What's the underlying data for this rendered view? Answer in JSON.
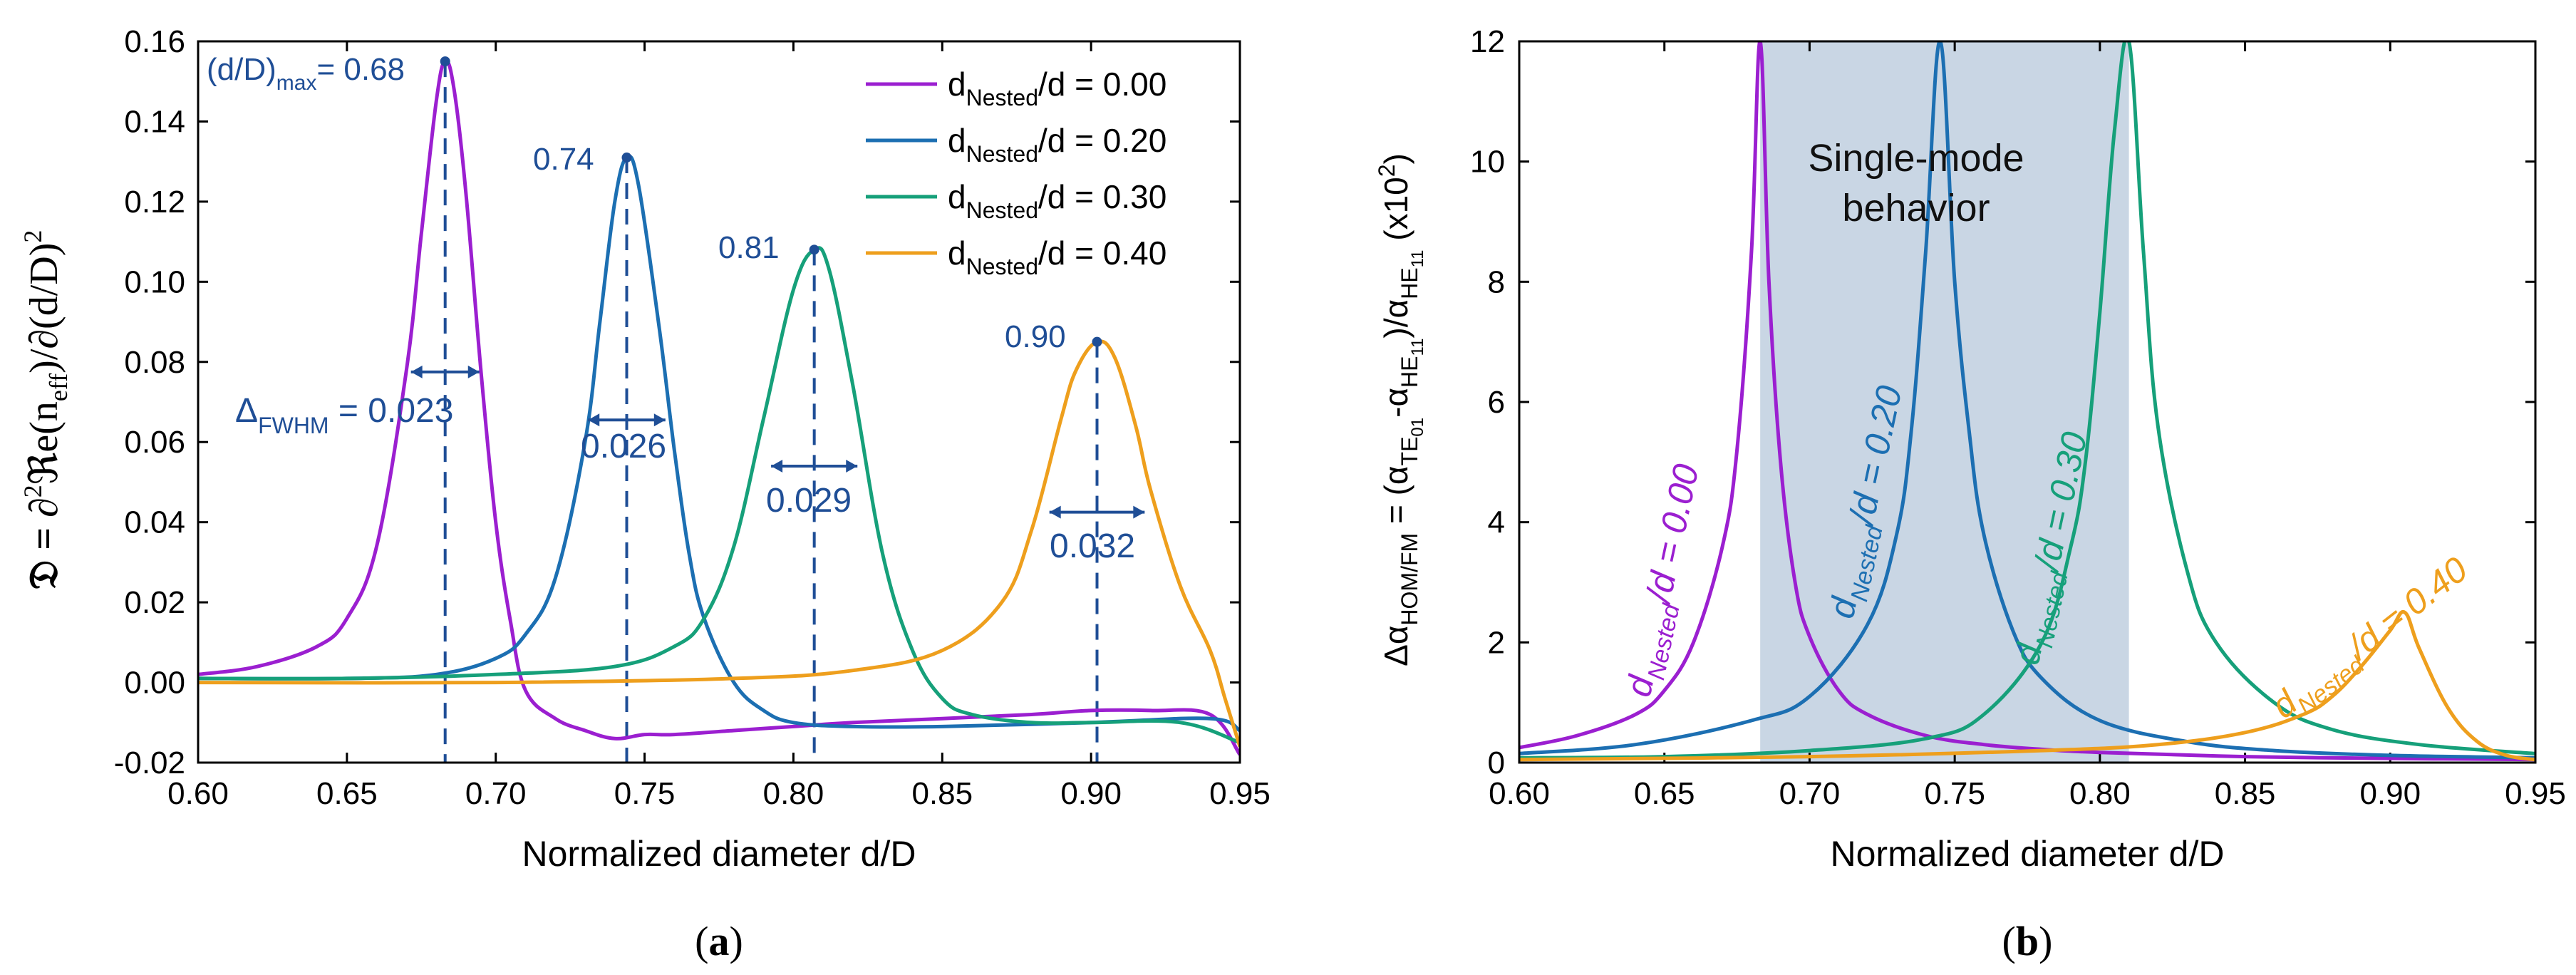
{
  "colors": {
    "purple": "#9b1fd0",
    "blue": "#1c6fb2",
    "green": "#16a07a",
    "orange": "#ee9f1d",
    "annot": "#1f4e96",
    "shade": "#c9d6e4",
    "axis": "#000000"
  },
  "panel_a": {
    "caption": "(a)",
    "ylabel_prefix": "𝔇 = ∂",
    "ylabel_sup2": "2",
    "ylabel_re": "ℜe(n",
    "ylabel_eff": "eff",
    "ylabel_mid": ")/∂(d/D)",
    "ylabel_tail_sup": "2",
    "xlabel": "Normalized diameter d/D",
    "max_label_prefix": "(d/D)",
    "max_label_sub": "max",
    "max_label_value": "= 0.68",
    "fwhm_label_prefix": "Δ",
    "fwhm_label_sub": "FWHM",
    "fwhm_label_eq": " = ",
    "peak_labels": [
      "0.74",
      "0.81",
      "0.90"
    ],
    "width_labels": [
      "0.023",
      "0.026",
      "0.029",
      "0.032"
    ],
    "legend": [
      {
        "prefix": "d",
        "sub": "Nested",
        "text": "/d = 0.00"
      },
      {
        "prefix": "d",
        "sub": "Nested",
        "text": "/d = 0.20"
      },
      {
        "prefix": "d",
        "sub": "Nested",
        "text": "/d = 0.30"
      },
      {
        "prefix": "d",
        "sub": "Nested",
        "text": "/d = 0.40"
      }
    ]
  },
  "panel_b": {
    "caption": "(b)",
    "ylabel_a": "Δα",
    "ylabel_sub1": "HOM/FM",
    "ylabel_b": " = (α",
    "ylabel_sub2": "TE",
    "ylabel_sub2b": "01",
    "ylabel_c": "-α",
    "ylabel_sub3": "HE",
    "ylabel_sub3b": "11",
    "ylabel_d": ")/α",
    "ylabel_sub4": "HE",
    "ylabel_sub4b": "11",
    "ylabel_e": " (x10",
    "ylabel_sup": "2",
    "ylabel_f": ")",
    "xlabel": "Normalized diameter d/D",
    "shade_label_1": "Single-mode",
    "shade_label_2": "behavior",
    "curve_labels": [
      {
        "prefix": "d",
        "sub": "Nested",
        "text": "/d = 0.00"
      },
      {
        "prefix": "d",
        "sub": "Nested",
        "text": "/d = 0.20"
      },
      {
        "prefix": "d",
        "sub": "Nested",
        "text": "/d = 0.30"
      },
      {
        "prefix": "d",
        "sub": "Nested",
        "text": "/d = 0.40"
      }
    ]
  },
  "chart_data": [
    {
      "type": "line",
      "title": "",
      "xlabel": "Normalized diameter d/D",
      "ylabel": "𝔇 = ∂²ℜe(n_eff)/∂(d/D)²",
      "xlim": [
        0.6,
        0.95
      ],
      "ylim": [
        -0.02,
        0.16
      ],
      "xticks": [
        "0.60",
        "0.65",
        "0.70",
        "0.75",
        "0.80",
        "0.85",
        "0.90",
        "0.95"
      ],
      "yticks": [
        "-0.02",
        "0.00",
        "0.02",
        "0.04",
        "0.06",
        "0.08",
        "0.10",
        "0.12",
        "0.14",
        "0.16"
      ],
      "series": [
        {
          "name": "dNested/d = 0.00",
          "peak_x": 0.683,
          "peak_y": 0.155,
          "fwhm": 0.023,
          "x": [
            0.6,
            0.62,
            0.64,
            0.65,
            0.66,
            0.67,
            0.675,
            0.68,
            0.683,
            0.686,
            0.69,
            0.695,
            0.7,
            0.705,
            0.71,
            0.72,
            0.73,
            0.74,
            0.75,
            0.76,
            0.78,
            0.8,
            0.82,
            0.85,
            0.88,
            0.9,
            0.92,
            0.94,
            0.95
          ],
          "y": [
            0.002,
            0.004,
            0.009,
            0.016,
            0.034,
            0.078,
            0.112,
            0.145,
            0.155,
            0.148,
            0.122,
            0.078,
            0.04,
            0.015,
            -0.002,
            -0.009,
            -0.012,
            -0.014,
            -0.013,
            -0.013,
            -0.012,
            -0.011,
            -0.01,
            -0.009,
            -0.008,
            -0.007,
            -0.007,
            -0.008,
            -0.018
          ]
        },
        {
          "name": "dNested/d = 0.20",
          "peak_x": 0.744,
          "peak_y": 0.131,
          "fwhm": 0.026,
          "x": [
            0.6,
            0.65,
            0.68,
            0.7,
            0.71,
            0.72,
            0.73,
            0.735,
            0.74,
            0.744,
            0.748,
            0.755,
            0.76,
            0.765,
            0.77,
            0.78,
            0.79,
            0.8,
            0.82,
            0.85,
            0.9,
            0.94,
            0.95
          ],
          "y": [
            0.001,
            0.001,
            0.002,
            0.006,
            0.012,
            0.026,
            0.06,
            0.09,
            0.12,
            0.131,
            0.124,
            0.088,
            0.058,
            0.032,
            0.016,
            0.0,
            -0.007,
            -0.01,
            -0.011,
            -0.011,
            -0.01,
            -0.009,
            -0.012
          ]
        },
        {
          "name": "dNested/d = 0.30",
          "peak_x": 0.807,
          "peak_y": 0.108,
          "fwhm": 0.029,
          "x": [
            0.6,
            0.65,
            0.7,
            0.74,
            0.76,
            0.77,
            0.78,
            0.79,
            0.8,
            0.807,
            0.812,
            0.82,
            0.83,
            0.84,
            0.85,
            0.86,
            0.88,
            0.9,
            0.93,
            0.95
          ],
          "y": [
            0.001,
            0.001,
            0.002,
            0.004,
            0.009,
            0.016,
            0.034,
            0.066,
            0.098,
            0.108,
            0.103,
            0.074,
            0.032,
            0.008,
            -0.004,
            -0.008,
            -0.01,
            -0.01,
            -0.01,
            -0.015
          ]
        },
        {
          "name": "dNested/d = 0.40",
          "peak_x": 0.902,
          "peak_y": 0.085,
          "fwhm": 0.032,
          "x": [
            0.6,
            0.7,
            0.78,
            0.82,
            0.85,
            0.87,
            0.88,
            0.89,
            0.895,
            0.902,
            0.908,
            0.915,
            0.92,
            0.93,
            0.94,
            0.945,
            0.95
          ],
          "y": [
            0.0,
            0.0,
            0.001,
            0.003,
            0.008,
            0.02,
            0.038,
            0.066,
            0.078,
            0.085,
            0.081,
            0.064,
            0.048,
            0.024,
            0.008,
            -0.004,
            -0.016
          ]
        }
      ]
    },
    {
      "type": "line",
      "title": "",
      "xlabel": "Normalized diameter d/D",
      "ylabel": "Δα_HOM/FM = (α_TE01 - α_HE11)/α_HE11 (x10²)",
      "xlim": [
        0.6,
        0.95
      ],
      "ylim": [
        0,
        12
      ],
      "xticks": [
        "0.60",
        "0.65",
        "0.70",
        "0.75",
        "0.80",
        "0.85",
        "0.90",
        "0.95"
      ],
      "yticks": [
        "0",
        "2",
        "4",
        "6",
        "8",
        "10",
        "12"
      ],
      "shaded_region_x": [
        0.683,
        0.81
      ],
      "series": [
        {
          "name": "dNested/d = 0.00",
          "x": [
            0.6,
            0.62,
            0.64,
            0.65,
            0.66,
            0.67,
            0.675,
            0.68,
            0.683,
            0.686,
            0.69,
            0.695,
            0.7,
            0.71,
            0.72,
            0.74,
            0.76,
            0.78,
            0.8,
            0.85,
            0.9,
            0.95
          ],
          "y": [
            0.25,
            0.45,
            0.8,
            1.2,
            2.0,
            3.6,
            5.2,
            8.5,
            12.0,
            8.0,
            5.0,
            3.0,
            2.1,
            1.2,
            0.8,
            0.45,
            0.3,
            0.22,
            0.17,
            0.1,
            0.07,
            0.05
          ]
        },
        {
          "name": "dNested/d = 0.20",
          "x": [
            0.6,
            0.64,
            0.68,
            0.7,
            0.72,
            0.73,
            0.735,
            0.74,
            0.745,
            0.75,
            0.755,
            0.76,
            0.77,
            0.78,
            0.8,
            0.83,
            0.86,
            0.9,
            0.95
          ],
          "y": [
            0.15,
            0.3,
            0.7,
            1.1,
            2.3,
            3.8,
            5.5,
            8.5,
            12.0,
            8.0,
            5.5,
            3.8,
            2.2,
            1.4,
            0.7,
            0.35,
            0.2,
            0.12,
            0.08
          ]
        },
        {
          "name": "dNested/d = 0.30",
          "x": [
            0.6,
            0.65,
            0.7,
            0.74,
            0.76,
            0.78,
            0.79,
            0.795,
            0.8,
            0.805,
            0.81,
            0.815,
            0.82,
            0.83,
            0.84,
            0.86,
            0.88,
            0.91,
            0.95
          ],
          "y": [
            0.08,
            0.1,
            0.2,
            0.4,
            0.8,
            2.0,
            3.6,
            5.0,
            7.5,
            10.5,
            12.0,
            8.5,
            5.6,
            3.2,
            2.0,
            1.0,
            0.55,
            0.3,
            0.15
          ]
        },
        {
          "name": "dNested/d = 0.40",
          "x": [
            0.6,
            0.7,
            0.78,
            0.82,
            0.85,
            0.87,
            0.88,
            0.89,
            0.9,
            0.905,
            0.91,
            0.92,
            0.93,
            0.94,
            0.95
          ],
          "y": [
            0.05,
            0.1,
            0.2,
            0.3,
            0.5,
            0.8,
            1.1,
            1.6,
            2.2,
            2.5,
            1.9,
            0.9,
            0.35,
            0.12,
            0.05
          ]
        }
      ]
    }
  ]
}
